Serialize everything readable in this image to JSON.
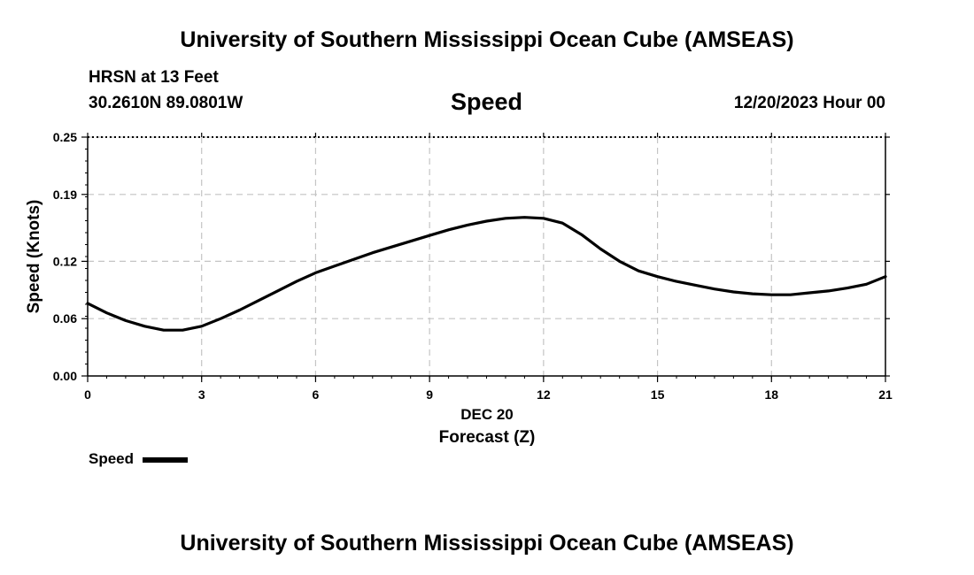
{
  "header": {
    "title": "University of Southern Mississippi Ocean Cube (AMSEAS)",
    "station": "HRSN at 13 Feet",
    "coords": "30.2610N  89.0801W",
    "chart_title": "Speed",
    "date": "12/20/2023 Hour 00"
  },
  "legend": {
    "label": "Speed"
  },
  "footer": {
    "title": "University of Southern Mississippi Ocean Cube (AMSEAS)"
  },
  "chart_data": {
    "type": "line",
    "title": "Speed",
    "xlabel": "Forecast (Z)",
    "xsublabel": "DEC 20",
    "ylabel": "Speed (Knots)",
    "xlim": [
      0,
      21
    ],
    "ylim": [
      0,
      0.25
    ],
    "xticks": [
      0,
      3,
      6,
      9,
      12,
      15,
      18,
      21
    ],
    "yticks": [
      0.0,
      0.06,
      0.12,
      0.19,
      0.25
    ],
    "ytick_labels": [
      "0.00",
      "0.06",
      "0.12",
      "0.19",
      "0.25"
    ],
    "grid": true,
    "series": [
      {
        "name": "Speed",
        "color": "#000000",
        "x": [
          0,
          0.5,
          1,
          1.5,
          2,
          2.5,
          3,
          3.5,
          4,
          4.5,
          5,
          5.5,
          6,
          6.5,
          7,
          7.5,
          8,
          8.5,
          9,
          9.5,
          10,
          10.5,
          11,
          11.5,
          12,
          12.5,
          13,
          13.5,
          14,
          14.5,
          15,
          15.5,
          16,
          16.5,
          17,
          17.5,
          18,
          18.5,
          19,
          19.5,
          20,
          20.5,
          21
        ],
        "values": [
          0.076,
          0.066,
          0.058,
          0.052,
          0.048,
          0.048,
          0.052,
          0.06,
          0.069,
          0.079,
          0.089,
          0.099,
          0.108,
          0.115,
          0.122,
          0.129,
          0.135,
          0.141,
          0.147,
          0.153,
          0.158,
          0.162,
          0.165,
          0.166,
          0.165,
          0.16,
          0.148,
          0.133,
          0.12,
          0.11,
          0.104,
          0.099,
          0.095,
          0.091,
          0.088,
          0.086,
          0.085,
          0.085,
          0.087,
          0.089,
          0.092,
          0.096,
          0.104
        ]
      }
    ]
  }
}
